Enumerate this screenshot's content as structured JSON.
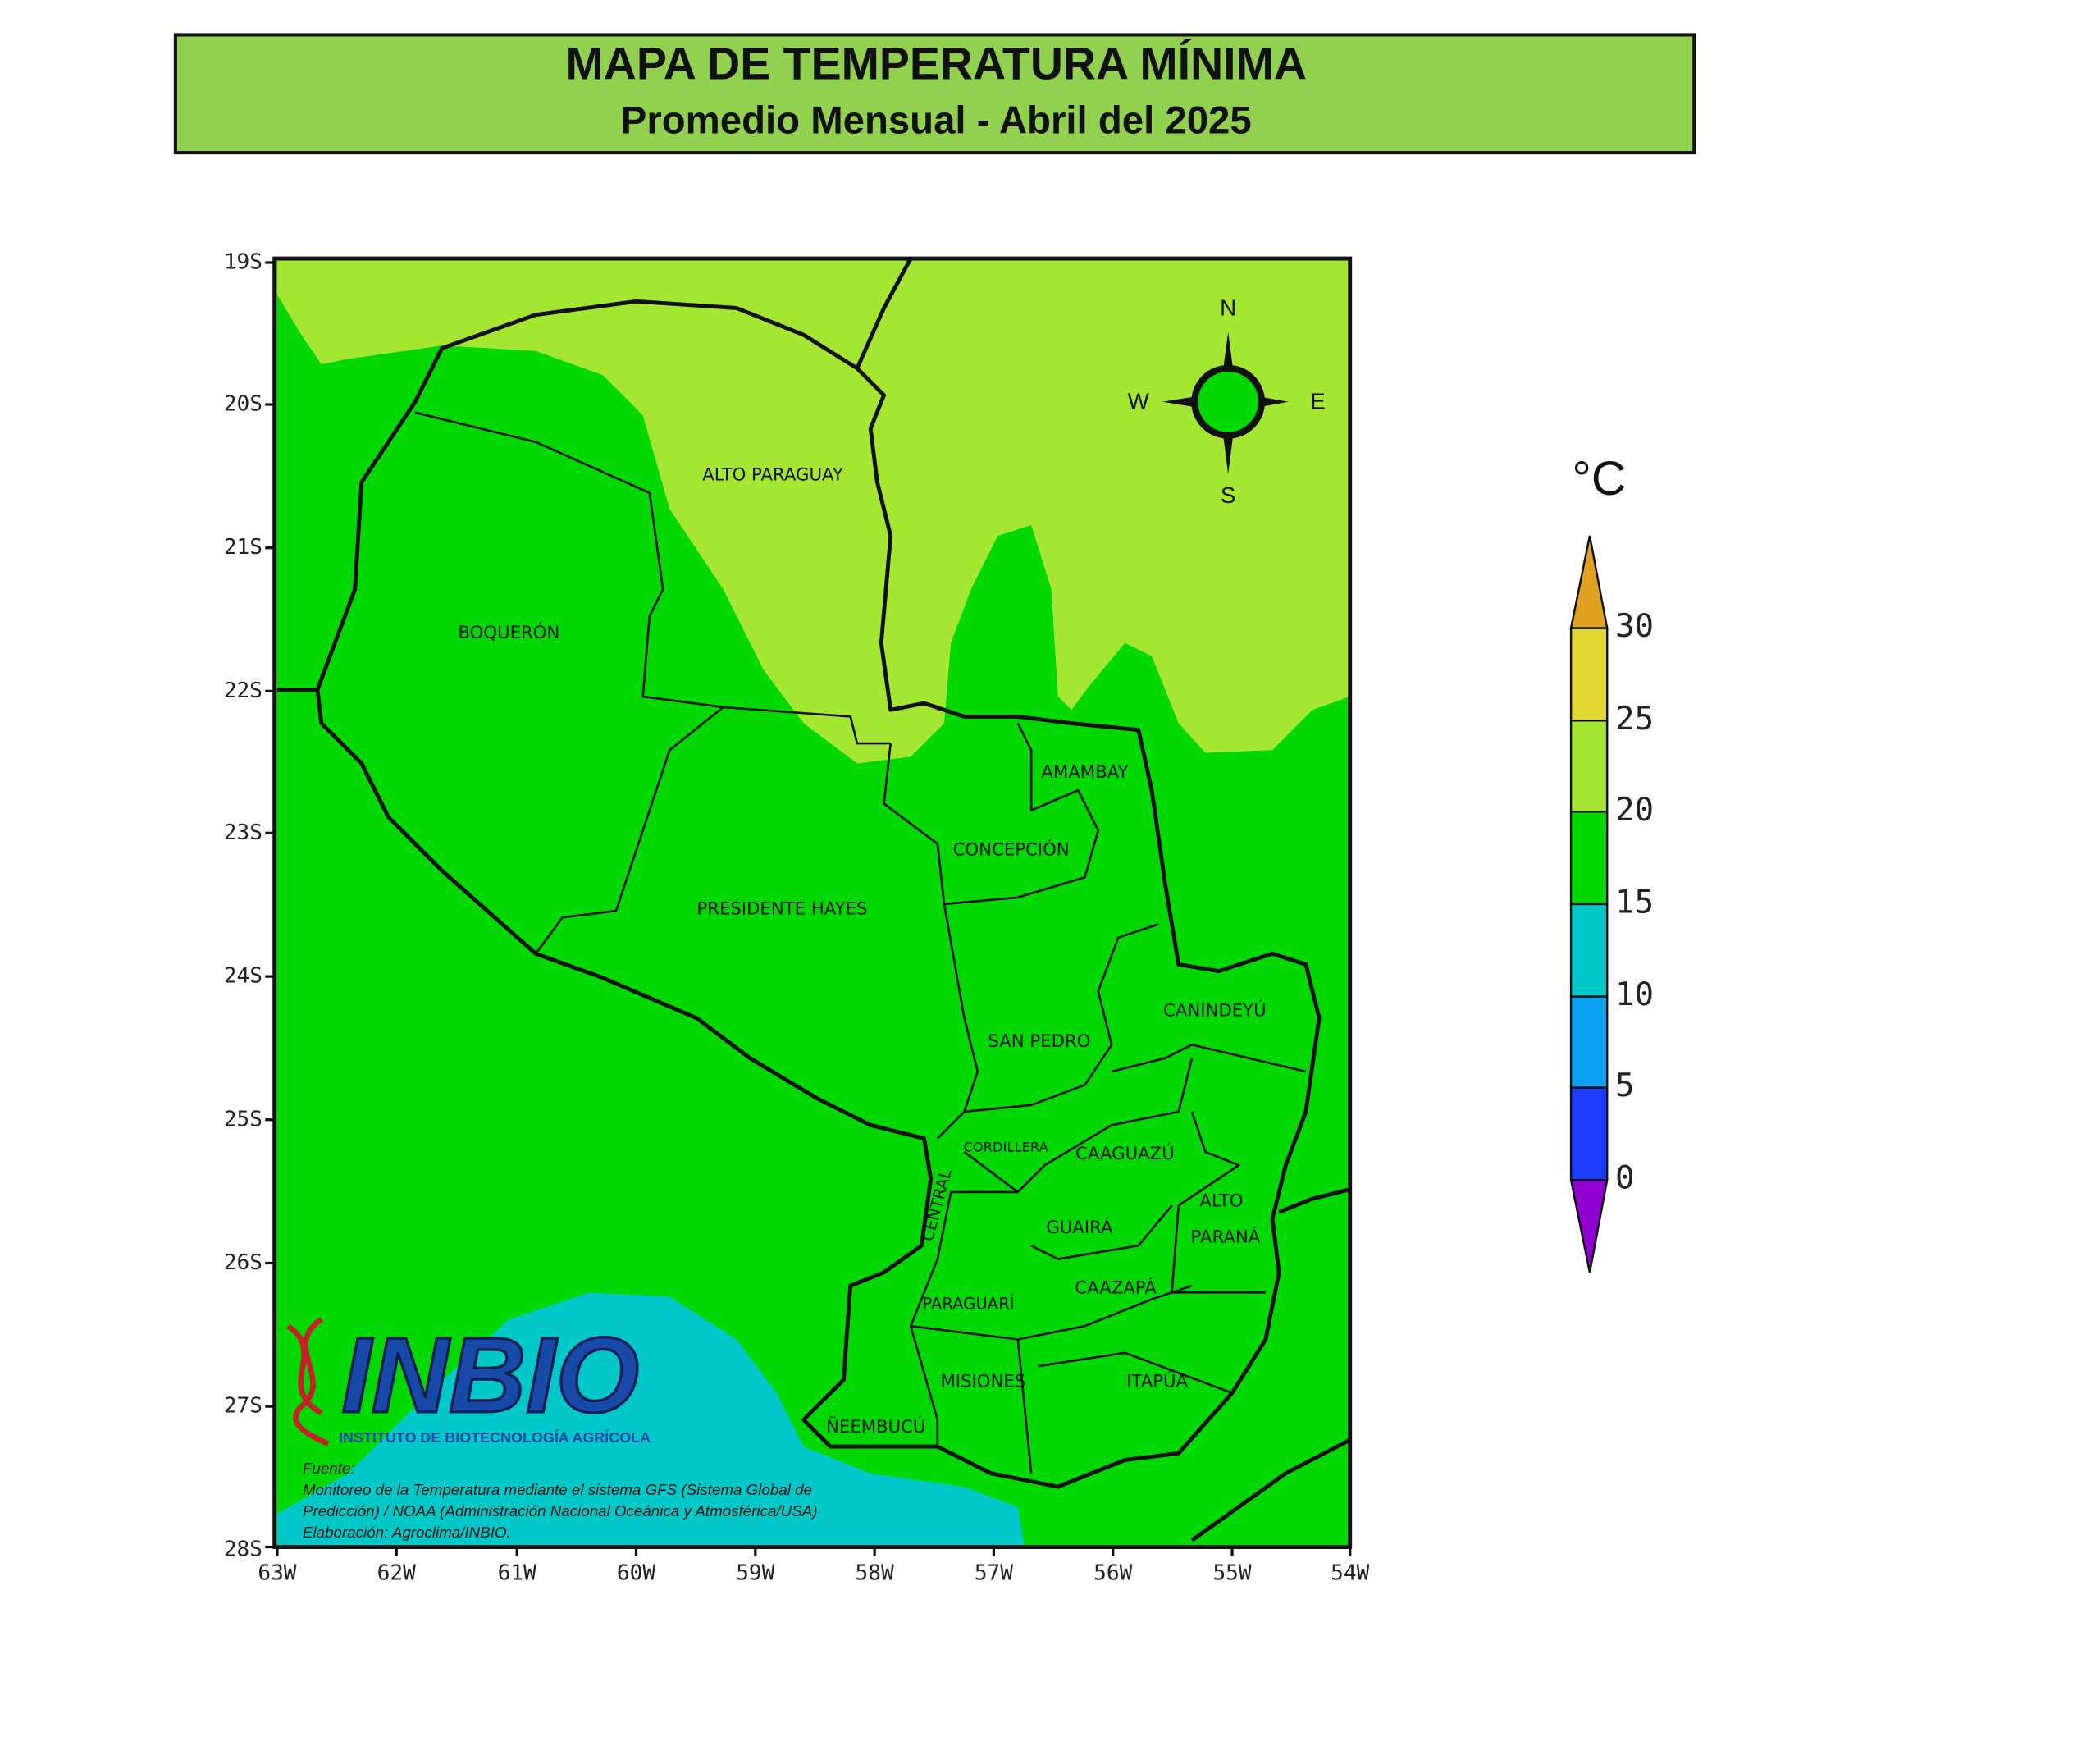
{
  "header": {
    "title": "MAPA DE TEMPERATURA MÍNIMA",
    "subtitle": "Promedio Mensual - Abril del 2025"
  },
  "map": {
    "lat_labels": [
      "19S",
      "20S",
      "21S",
      "22S",
      "23S",
      "24S",
      "25S",
      "26S",
      "27S",
      "28S"
    ],
    "lon_labels": [
      "63W",
      "62W",
      "61W",
      "60W",
      "59W",
      "58W",
      "57W",
      "56W",
      "55W",
      "54W"
    ],
    "regions": [
      "ALTO PARAGUAY",
      "BOQUERÓN",
      "PRESIDENTE HAYES",
      "CONCEPCIÓN",
      "AMAMBAY",
      "SAN PEDRO",
      "CANINDEYÚ",
      "CORDILLERA",
      "CAAGUAZÚ",
      "ALTO",
      "PARANÁ",
      "GUAIRÁ",
      "CAAZAPÁ",
      "PARAGUARÍ",
      "CENTRAL",
      "MISIONES",
      "ITAPÚA",
      "ÑEEMBUCÚ"
    ],
    "compass": {
      "north": "N",
      "south": "S",
      "west": "W",
      "east": "E"
    }
  },
  "legend": {
    "unit": "°C",
    "ticks": [
      30,
      25,
      20,
      15,
      10,
      5,
      0
    ]
  },
  "logo": {
    "name": "INBIO",
    "subtitle": "INSTITUTO DE BIOTECNOLOGÍA AGRÍCOLA"
  },
  "source": [
    "Fuente:",
    "Monitoreo de la Temperatura mediante el sistema GFS (Sistema Global de",
    "Predicción) / NOAA (Administración Nacional Oceánica y Atmosférica/USA)",
    "Elaboración: Agroclima/INBIO."
  ]
}
